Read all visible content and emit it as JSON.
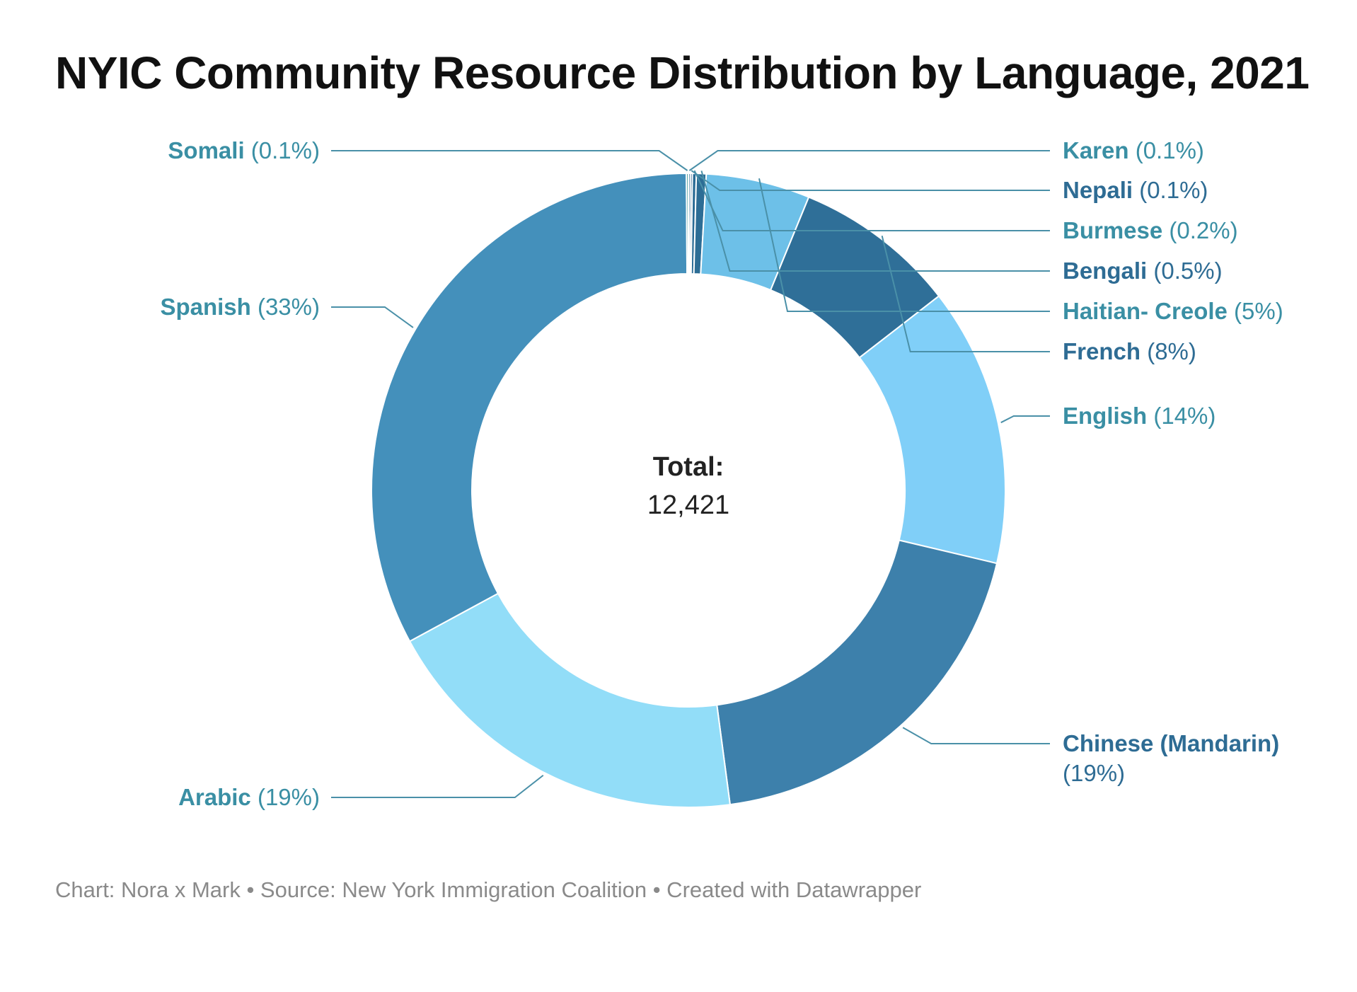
{
  "title": "NYIC Community Resource Distribution by Language, 2021",
  "footer": "Chart: Nora x Mark • Source: New York Immigration Coalition • Created with Datawrapper",
  "center": {
    "label": "Total:",
    "value": "12,421"
  },
  "colors": {
    "label_teal": "#3a8fa4",
    "label_dark": "#2e6c94",
    "leader": "#4a90a8"
  },
  "chart_data": {
    "type": "pie",
    "variant": "donut",
    "title": "NYIC Community Resource Distribution by Language, 2021",
    "total": 12421,
    "start_angle_deg": 0,
    "direction": "clockwise",
    "slices": [
      {
        "name": "Karen",
        "pct_label": "(0.1%)",
        "value": 0.1,
        "color": "#2f6e99",
        "label_side": "right"
      },
      {
        "name": "Nepali",
        "pct_label": "(0.1%)",
        "value": 0.1,
        "color": "#1f5a84",
        "label_side": "right"
      },
      {
        "name": "Burmese",
        "pct_label": "(0.2%)",
        "value": 0.2,
        "color": "#2a6b95",
        "label_side": "right"
      },
      {
        "name": "Bengali",
        "pct_label": "(0.5%)",
        "value": 0.5,
        "color": "#2d6d95",
        "label_side": "right"
      },
      {
        "name": "Haitian- Creole",
        "pct_label": "(5%)",
        "value": 5.3,
        "color": "#6dc0e8",
        "label_side": "right"
      },
      {
        "name": "French",
        "pct_label": "(8%)",
        "value": 8.3,
        "color": "#2f6f98",
        "label_side": "right"
      },
      {
        "name": "English",
        "pct_label": "(14%)",
        "value": 14.2,
        "color": "#80cff8",
        "label_side": "right"
      },
      {
        "name": "Chinese (Mandarin)",
        "pct_label": "(19%)",
        "value": 19.2,
        "color": "#3d80ab",
        "label_side": "right"
      },
      {
        "name": "Arabic",
        "pct_label": "(19%)",
        "value": 19.2,
        "color": "#92ddf8",
        "label_side": "left"
      },
      {
        "name": "Spanish",
        "pct_label": "(33%)",
        "value": 32.8,
        "color": "#4490bb",
        "label_side": "left"
      },
      {
        "name": "Somali",
        "pct_label": "(0.1%)",
        "value": 0.1,
        "color": "#2e8f8c",
        "label_side": "left"
      }
    ]
  }
}
